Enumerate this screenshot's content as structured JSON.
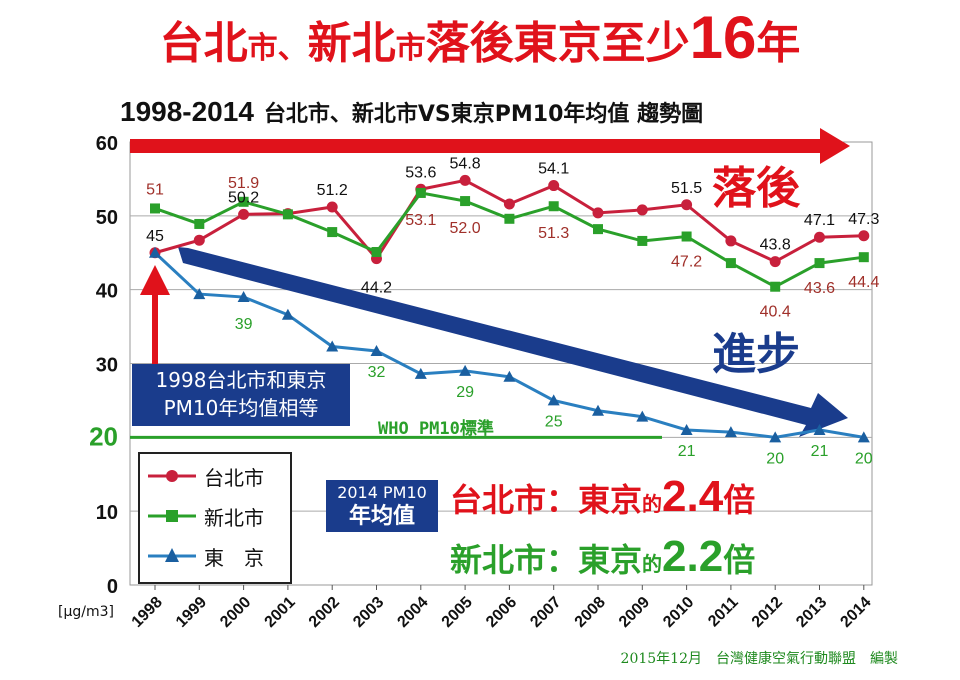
{
  "header": {
    "title_parts": [
      "台北",
      "市",
      "、",
      "新北",
      "市",
      "落後東京至少",
      "16",
      "年"
    ],
    "subtitle_years": "1998-2014",
    "subtitle_text": "台北市、新北市VS東京PM10年均值 趨勢圖"
  },
  "annotations": {
    "lagging": "落後",
    "progress": "進步",
    "box1_line1": "1998台北市和東京",
    "box1_line2": "PM10年均值相等",
    "who_line": "WHO PM10標準",
    "box2_line1": "2014 PM10",
    "box2_line2": "年均值",
    "ratio1_city": "台北市：東京",
    "ratio1_de": "的",
    "ratio1_value": "2.4",
    "ratio1_unit": "倍",
    "ratio2_city": "新北市：東京",
    "ratio2_de": "的",
    "ratio2_value": "2.2",
    "ratio2_unit": "倍",
    "unit": "[μg/m3]",
    "credit_date": "2015年12月",
    "credit_org": "台灣健康空氣行動聯盟",
    "credit_role": "編製"
  },
  "legend": {
    "taipei": "台北市",
    "newtaipei": "新北市",
    "tokyo": "東　京"
  },
  "colors": {
    "taipei": "#c8203c",
    "newtaipei": "#2aa02a",
    "tokyo": "#2a7fc0",
    "red_label": "#a0302a",
    "green_label": "#2aa02a",
    "navy": "#1a3c8c",
    "red_arrow": "#e0121b"
  },
  "chart_data": {
    "type": "line",
    "title": "1998-2014 台北市、新北市VS東京PM10年均值 趨勢圖",
    "xlabel": "",
    "ylabel": "[μg/m3]",
    "ylim": [
      0,
      60
    ],
    "yticks": [
      0,
      10,
      20,
      30,
      40,
      50,
      60
    ],
    "grid": true,
    "who_standard": 20,
    "x": [
      "1998",
      "1999",
      "2000",
      "2001",
      "2002",
      "2003",
      "2004",
      "2005",
      "2006",
      "2007",
      "2008",
      "2009",
      "2010",
      "2011",
      "2012",
      "2013",
      "2014"
    ],
    "series": [
      {
        "name": "台北市",
        "values": [
          45,
          46.7,
          50.2,
          50.3,
          51.2,
          44.2,
          53.6,
          54.8,
          51.6,
          54.1,
          50.4,
          50.8,
          51.5,
          46.6,
          43.8,
          47.1,
          47.3
        ]
      },
      {
        "name": "新北市",
        "values": [
          51,
          48.9,
          51.9,
          50.2,
          47.8,
          45.1,
          53.1,
          52.0,
          49.6,
          51.3,
          48.2,
          46.6,
          47.2,
          43.6,
          40.4,
          43.6,
          44.4
        ]
      },
      {
        "name": "東京",
        "values": [
          45,
          39.4,
          39,
          36.6,
          32.3,
          31.7,
          28.6,
          29,
          28.2,
          25,
          23.6,
          22.8,
          21,
          20.7,
          20,
          21,
          20
        ]
      }
    ],
    "data_labels": {
      "taipei": [
        {
          "i": 0,
          "text": "45"
        },
        {
          "i": 2,
          "text": "50.2"
        },
        {
          "i": 4,
          "text": "51.2"
        },
        {
          "i": 5,
          "text": "44.2"
        },
        {
          "i": 6,
          "text": "53.6"
        },
        {
          "i": 7,
          "text": "54.8"
        },
        {
          "i": 9,
          "text": "54.1"
        },
        {
          "i": 12,
          "text": "51.5"
        },
        {
          "i": 14,
          "text": "43.8"
        },
        {
          "i": 15,
          "text": "47.1"
        },
        {
          "i": 16,
          "text": "47.3"
        }
      ],
      "newtaipei": [
        {
          "i": 0,
          "text": "51"
        },
        {
          "i": 2,
          "text": "51.9"
        },
        {
          "i": 6,
          "text": "53.1"
        },
        {
          "i": 7,
          "text": "52.0"
        },
        {
          "i": 9,
          "text": "51.3"
        },
        {
          "i": 12,
          "text": "47.2"
        },
        {
          "i": 14,
          "text": "40.4"
        },
        {
          "i": 15,
          "text": "43.6"
        },
        {
          "i": 16,
          "text": "44.4"
        }
      ],
      "tokyo": [
        {
          "i": 2,
          "text": "39"
        },
        {
          "i": 5,
          "text": "32"
        },
        {
          "i": 7,
          "text": "29"
        },
        {
          "i": 9,
          "text": "25"
        },
        {
          "i": 12,
          "text": "21"
        },
        {
          "i": 14,
          "text": "20"
        },
        {
          "i": 15,
          "text": "21"
        },
        {
          "i": 16,
          "text": "20"
        }
      ]
    }
  }
}
